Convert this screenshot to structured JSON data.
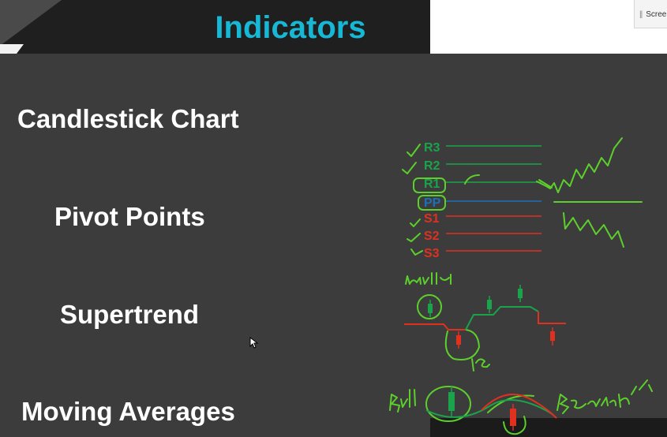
{
  "header": {
    "title": "Indicators"
  },
  "toolbar": {
    "screen_button_label": "Scree"
  },
  "indicators": {
    "items": [
      "Candlestick Chart",
      "Pivot Points",
      "Supertrend",
      "Moving Averages"
    ]
  },
  "pivot_levels": [
    "R3",
    "R2",
    "R1",
    "PP",
    "S1",
    "S2",
    "S3"
  ],
  "colors": {
    "accent": "#17b7d6",
    "resistance": "#1aa34a",
    "pivot": "#1e6fb8",
    "support": "#e03020",
    "ink": "#5ccf2c"
  }
}
